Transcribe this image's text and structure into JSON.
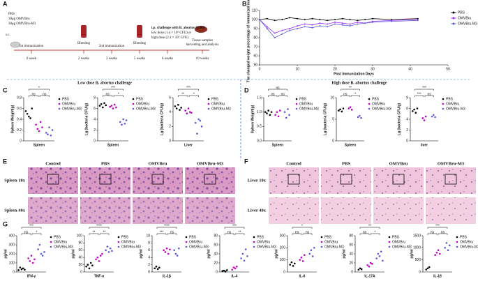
{
  "panel_letters": [
    "A",
    "B",
    "C",
    "D",
    "E",
    "F",
    "G"
  ],
  "timeline": {
    "treatment": [
      "PBS",
      "30μg OMVBru",
      "30μg OMVBru-M3"
    ],
    "route": "s.c.",
    "events": [
      "1st immunization",
      "Bleeding",
      "2nd immunization",
      "Bleeding",
      "i.p. challenge with B. abortus S2308",
      "low dose  (1.4 × 10⁵ CFU) or",
      "high dose  (2.1 × 10⁵ CFU)",
      "Tissue samples",
      "harvesting and analysis"
    ],
    "weeks": [
      "0 week",
      "2 weeks",
      "3 weeks",
      "5 weeks",
      "6 weeks",
      "10 weeks"
    ]
  },
  "section_headers": [
    "Low dose B. abortus challenge",
    "High dose B. abortus challenge"
  ],
  "histology": {
    "E": {
      "columns": [
        "Control",
        "PBS",
        "OMVBru",
        "OMVBru-M3"
      ],
      "rows": [
        "Spleen 10x",
        "Spleen 40x"
      ]
    },
    "F": {
      "columns": [
        "Control",
        "PBS",
        "OMVBru",
        "OMVBru-M3"
      ],
      "rows": [
        "Liver 10x",
        "Liver 40x"
      ]
    }
  },
  "chart_data": [
    {
      "type": "line",
      "ylabel": "The changed weight percentage of immunized mice %",
      "xlabel": "Post Immunization Days",
      "x": [
        0,
        2,
        4,
        6,
        8,
        10,
        12,
        14,
        16,
        18,
        20,
        22,
        24,
        26,
        28,
        30,
        35,
        42
      ],
      "xlim": [
        0,
        50
      ],
      "xticks": [
        0,
        10,
        20,
        30,
        40,
        50
      ],
      "ylim": [
        50,
        110
      ],
      "yticks": [
        50,
        60,
        70,
        80,
        90,
        100,
        110
      ],
      "series": [
        {
          "name": "PBS",
          "color": "#000000",
          "values": [
            100,
            101,
            99,
            100,
            102,
            101,
            100,
            101,
            100,
            99,
            100,
            101,
            100,
            99,
            100,
            101,
            100,
            101
          ]
        },
        {
          "name": "OMVBru",
          "color": "#9b30ff",
          "values": [
            100,
            92,
            85,
            88,
            90,
            93,
            95,
            94,
            96,
            95,
            97,
            96,
            95,
            97,
            96,
            98,
            99,
            100
          ]
        },
        {
          "name": "OMVBru-M3",
          "color": "#5b5bd6",
          "values": [
            100,
            90,
            80,
            84,
            88,
            90,
            92,
            91,
            93,
            92,
            95,
            94,
            93,
            95,
            96,
            97,
            98,
            99
          ]
        }
      ]
    },
    {
      "type": "dot",
      "xlabel": "Spleen",
      "ylabel": "Spleen Weight(g)",
      "ylim": [
        0,
        0.8
      ],
      "yticks": [
        0,
        0.2,
        0.4,
        0.6,
        0.8
      ],
      "annotations": [
        "*",
        "ns",
        "ns"
      ],
      "series": [
        {
          "name": "PBS",
          "color": "#000000",
          "values": [
            0.55,
            0.5,
            0.45,
            0.42,
            0.6
          ]
        },
        {
          "name": "OMVBru",
          "color": "#c000c0",
          "values": [
            0.3,
            0.22,
            0.18,
            0.35,
            0.25
          ]
        },
        {
          "name": "OMVBru-M3",
          "color": "#5b5bd6",
          "values": [
            0.15,
            0.12,
            0.25,
            0.1,
            0.2
          ]
        }
      ]
    },
    {
      "type": "dot",
      "xlabel": "Spleen",
      "ylabel": "Lg (bacteria CFU/g)",
      "ylim": [
        0,
        8
      ],
      "yticks": [
        0,
        2,
        4,
        6,
        8
      ],
      "annotations": [
        "***",
        "ns",
        "*"
      ],
      "series": [
        {
          "name": "PBS",
          "color": "#000000",
          "values": [
            6.5,
            6.8,
            6.2,
            7,
            6.6
          ]
        },
        {
          "name": "OMVBru",
          "color": "#c000c0",
          "values": [
            6.3,
            6.5,
            6,
            6.7,
            6.2
          ]
        },
        {
          "name": "OMVBru-M3",
          "color": "#5b5bd6",
          "values": [
            3.5,
            3,
            4,
            3.2,
            3.8
          ]
        }
      ]
    },
    {
      "type": "dot",
      "xlabel": "Liver",
      "ylabel": "Lg (bacteria CFU/g)",
      "ylim": [
        0,
        6
      ],
      "yticks": [
        0,
        2,
        4,
        6
      ],
      "annotations": [
        "***",
        "**",
        "*"
      ],
      "series": [
        {
          "name": "PBS",
          "color": "#000000",
          "values": [
            4.8,
            4.5,
            5,
            4.3,
            4.6
          ]
        },
        {
          "name": "OMVBru",
          "color": "#c000c0",
          "values": [
            4.2,
            3.8,
            4.5,
            4,
            3.9
          ]
        },
        {
          "name": "OMVBru-M3",
          "color": "#5b5bd6",
          "values": [
            2.5,
            1,
            3,
            2.8,
            2
          ]
        }
      ]
    },
    {
      "type": "dot",
      "xlabel": "Spleen",
      "ylabel": "Spleen Weight(g)",
      "ylim": [
        0,
        1.5
      ],
      "yticks": [
        {
          "value": 0,
          "label": "0.0"
        },
        0.5,
        {
          "value": 1,
          "label": "1.0"
        },
        1.5
      ],
      "annotations": [
        "ns",
        "ns",
        "ns"
      ],
      "series": [
        {
          "name": "PBS",
          "color": "#000000",
          "values": [
            1,
            0.95,
            1.05,
            0.9,
            1
          ]
        },
        {
          "name": "OMVBru",
          "color": "#c000c0",
          "values": [
            0.9,
            1,
            0.85,
            1.05
          ]
        },
        {
          "name": "OMVBru-M3",
          "color": "#5b5bd6",
          "values": [
            1,
            0.8,
            1.1,
            0.9
          ]
        }
      ]
    },
    {
      "type": "dot",
      "xlabel": "Spleen",
      "ylabel": "Lg (bacteria CFU/g)",
      "ylim": [
        0,
        10
      ],
      "yticks": [
        0,
        5,
        10
      ],
      "annotations": [
        "**",
        "ns",
        "*"
      ],
      "series": [
        {
          "name": "PBS",
          "color": "#000000",
          "values": [
            7,
            7.3,
            6.8,
            7.5
          ]
        },
        {
          "name": "OMVBru",
          "color": "#c000c0",
          "values": [
            7.5,
            7.8,
            7.2
          ]
        },
        {
          "name": "OMVBru-M3",
          "color": "#5b5bd6",
          "values": [
            5.5,
            5.8,
            5.3
          ]
        }
      ]
    },
    {
      "type": "dot",
      "xlabel": "liver",
      "ylabel": "Lg (bacteria CFU/g)",
      "ylim": [
        0,
        8
      ],
      "yticks": [
        0,
        2,
        4,
        6,
        8
      ],
      "annotations": [
        "***",
        "***",
        "ns"
      ],
      "series": [
        {
          "name": "PBS",
          "color": "#000000",
          "values": [
            5.5,
            5.8,
            5.2,
            6
          ]
        },
        {
          "name": "OMVBru",
          "color": "#c000c0",
          "values": [
            4.2,
            3.8,
            4.5
          ]
        },
        {
          "name": "OMVBru-M3",
          "color": "#5b5bd6",
          "values": [
            4.5,
            4.8,
            4.4
          ]
        }
      ]
    },
    {
      "type": "dot",
      "xlabel": "IFN-γ",
      "ylabel": "pg/ml",
      "ylim": [
        0,
        400
      ],
      "yticks": [
        0,
        100,
        200,
        300,
        400
      ],
      "annotations": [
        "***",
        "ns",
        "*"
      ],
      "series": [
        {
          "name": "PBS",
          "color": "#000000",
          "values": [
            20,
            50,
            30,
            40,
            25
          ]
        },
        {
          "name": "OMVBru",
          "color": "#c000c0",
          "values": [
            150,
            120,
            180,
            100,
            140
          ]
        },
        {
          "name": "OMVBru-M3",
          "color": "#5b5bd6",
          "values": [
            250,
            300,
            200,
            180,
            220
          ]
        }
      ]
    },
    {
      "type": "dot",
      "xlabel": "TNF-α",
      "ylabel": "pg/ml",
      "ylim": [
        0,
        100
      ],
      "yticks": [
        0,
        20,
        40,
        60,
        80,
        100
      ],
      "annotations": [
        "****",
        "**",
        "**"
      ],
      "series": [
        {
          "name": "PBS",
          "color": "#000000",
          "values": [
            15,
            20,
            10,
            25,
            18
          ]
        },
        {
          "name": "OMVBru",
          "color": "#c000c0",
          "values": [
            35,
            40,
            30,
            45,
            50
          ]
        },
        {
          "name": "OMVBru-M3",
          "color": "#5b5bd6",
          "values": [
            60,
            70,
            55,
            65,
            58
          ]
        }
      ]
    },
    {
      "type": "dot",
      "xlabel": "IL-1β",
      "ylabel": "pg/ml",
      "ylim": [
        0,
        10
      ],
      "yticks": [
        0,
        2,
        4,
        6,
        8,
        10
      ],
      "annotations": [
        "****",
        "***",
        "ns"
      ],
      "series": [
        {
          "name": "PBS",
          "color": "#000000",
          "values": [
            1,
            1.5,
            0.8,
            1.2
          ]
        },
        {
          "name": "OMVBru",
          "color": "#c000c0",
          "values": [
            6,
            5.5,
            6.5,
            5,
            6.2
          ]
        },
        {
          "name": "OMVBru-M3",
          "color": "#5b5bd6",
          "values": [
            6,
            5,
            4.5,
            6.5
          ]
        }
      ]
    },
    {
      "type": "dot",
      "xlabel": "IL-4",
      "ylabel": "pg/ml",
      "ylim": [
        0,
        80
      ],
      "yticks": [
        0,
        20,
        40,
        60,
        80
      ],
      "annotations": [
        "***",
        "ns",
        "**"
      ],
      "series": [
        {
          "name": "PBS",
          "color": "#000000",
          "values": [
            2,
            3,
            1,
            4
          ]
        },
        {
          "name": "OMVBru",
          "color": "#c000c0",
          "values": [
            5,
            10,
            8,
            12
          ]
        },
        {
          "name": "OMVBru-M3",
          "color": "#5b5bd6",
          "values": [
            30,
            40,
            25,
            50,
            35
          ]
        }
      ]
    },
    {
      "type": "dot",
      "xlabel": "IL-6",
      "ylabel": "pg/ml",
      "ylim": [
        0,
        300
      ],
      "yticks": [
        0,
        100,
        200,
        300
      ],
      "annotations": [
        "*",
        "ns",
        "ns"
      ],
      "series": [
        {
          "name": "PBS",
          "color": "#000000",
          "values": [
            60,
            80,
            50,
            70
          ]
        },
        {
          "name": "OMVBru",
          "color": "#c000c0",
          "values": [
            100,
            120,
            90,
            140
          ]
        },
        {
          "name": "OMVBru-M3",
          "color": "#5b5bd6",
          "values": [
            150,
            180,
            130,
            200
          ]
        }
      ]
    },
    {
      "type": "dot",
      "xlabel": "IL-17A",
      "ylabel": "pg/ml",
      "ylim": [
        0,
        80
      ],
      "yticks": [
        0,
        20,
        40,
        60,
        80
      ],
      "annotations": [
        "**",
        "ns",
        "*"
      ],
      "series": [
        {
          "name": "PBS",
          "color": "#000000",
          "values": [
            5,
            8,
            6
          ]
        },
        {
          "name": "OMVBru",
          "color": "#c000c0",
          "values": [
            15,
            12,
            20,
            18
          ]
        },
        {
          "name": "OMVBru-M3",
          "color": "#5b5bd6",
          "values": [
            30,
            40,
            35,
            45,
            25
          ]
        }
      ]
    },
    {
      "type": "dot",
      "xlabel": "IL-18",
      "ylabel": "pg/ml",
      "ylim": [
        0,
        1500
      ],
      "yticks": [
        0,
        500,
        1000,
        1500
      ],
      "annotations": [
        "***",
        "ns",
        "ns"
      ],
      "series": [
        {
          "name": "PBS",
          "color": "#000000",
          "values": [
            100,
            150,
            200
          ]
        },
        {
          "name": "OMVBru",
          "color": "#c000c0",
          "values": [
            700,
            800,
            900,
            750
          ]
        },
        {
          "name": "OMVBru-M3",
          "color": "#5b5bd6",
          "values": [
            1000,
            1200,
            900,
            1100
          ]
        }
      ]
    }
  ]
}
